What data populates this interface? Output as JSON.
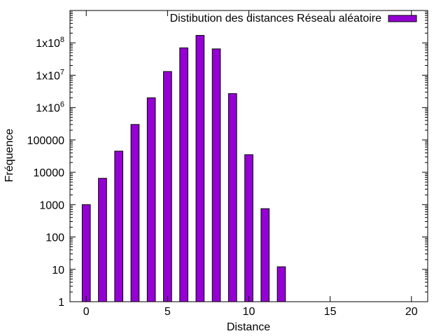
{
  "chart_data": {
    "type": "bar",
    "title": "",
    "xlabel": "Distance",
    "ylabel": "Fréquence",
    "x_scale": "linear",
    "y_scale": "log",
    "xlim": [
      -1,
      21
    ],
    "ylim": [
      1,
      1000000000
    ],
    "grid": false,
    "legend_position": "top-right",
    "x_ticks": [
      {
        "value": 0,
        "label": "0"
      },
      {
        "value": 5,
        "label": "5"
      },
      {
        "value": 10,
        "label": "10"
      },
      {
        "value": 15,
        "label": "15"
      },
      {
        "value": 20,
        "label": "20"
      }
    ],
    "y_ticks": [
      {
        "value": 1,
        "label": "1"
      },
      {
        "value": 10,
        "label": "10"
      },
      {
        "value": 100,
        "label": "100"
      },
      {
        "value": 1000,
        "label": "1000"
      },
      {
        "value": 10000,
        "label": "10000"
      },
      {
        "value": 100000,
        "label": "100000"
      },
      {
        "value": 1000000,
        "base": "1x10",
        "exp": "6"
      },
      {
        "value": 10000000,
        "base": "1x10",
        "exp": "7"
      },
      {
        "value": 100000000,
        "base": "1x10",
        "exp": "8"
      }
    ],
    "series": [
      {
        "name": "Distibution des distances Réseau aléatoire",
        "color": "#9400d3",
        "x": [
          0,
          1,
          2,
          3,
          4,
          5,
          6,
          7,
          8,
          9,
          10,
          11,
          12
        ],
        "values": [
          1000,
          6500,
          45000,
          300000,
          2000000,
          13000000,
          70000000,
          170000000,
          65000000,
          2700000,
          35000,
          750,
          12
        ]
      }
    ]
  }
}
